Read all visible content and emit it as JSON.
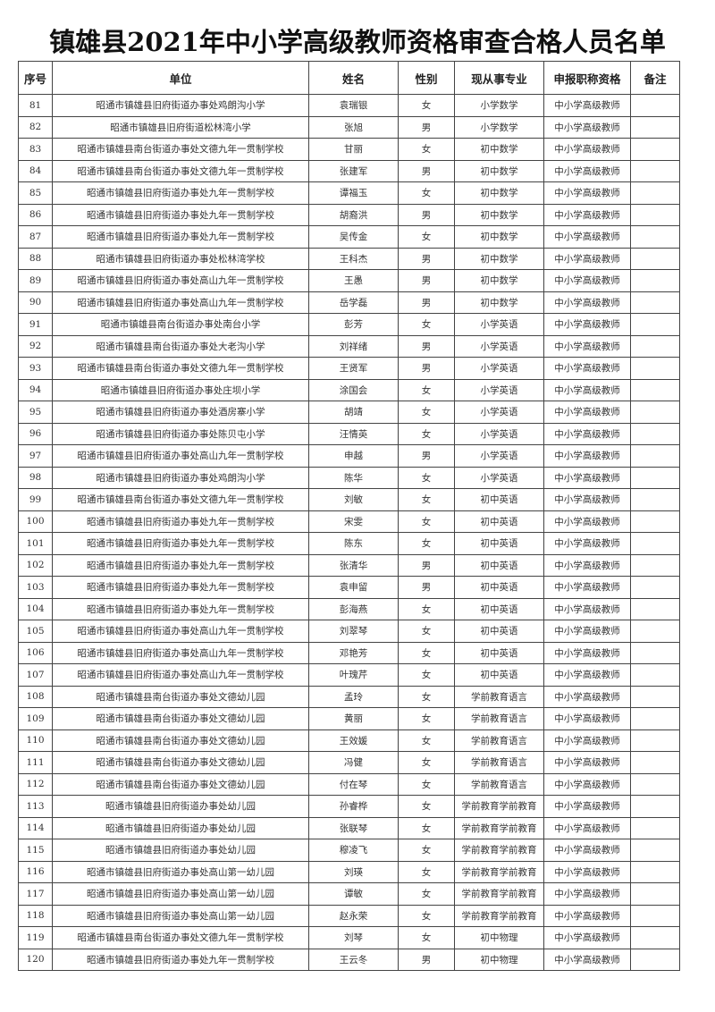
{
  "title": "镇雄县2021年中小学高级教师资格审查合格人员名单",
  "columns": [
    "序号",
    "单位",
    "姓名",
    "性别",
    "现从事专业",
    "申报职称资格",
    "备注"
  ],
  "rows": [
    [
      "81",
      "昭通市镇雄县旧府街道办事处鸡朗沟小学",
      "袁瑞银",
      "女",
      "小学数学",
      "中小学高级教师",
      ""
    ],
    [
      "82",
      "昭通市镇雄县旧府街道松林湾小学",
      "张旭",
      "男",
      "小学数学",
      "中小学高级教师",
      ""
    ],
    [
      "83",
      "昭通市镇雄县南台街道办事处文德九年一贯制学校",
      "甘丽",
      "女",
      "初中数学",
      "中小学高级教师",
      ""
    ],
    [
      "84",
      "昭通市镇雄县南台街道办事处文德九年一贯制学校",
      "张建军",
      "男",
      "初中数学",
      "中小学高级教师",
      ""
    ],
    [
      "85",
      "昭通市镇雄县旧府街道办事处九年一贯制学校",
      "谭福玉",
      "女",
      "初中数学",
      "中小学高级教师",
      ""
    ],
    [
      "86",
      "昭通市镇雄县旧府街道办事处九年一贯制学校",
      "胡裔洪",
      "男",
      "初中数学",
      "中小学高级教师",
      ""
    ],
    [
      "87",
      "昭通市镇雄县旧府街道办事处九年一贯制学校",
      "吴传金",
      "女",
      "初中数学",
      "中小学高级教师",
      ""
    ],
    [
      "88",
      "昭通市镇雄县旧府街道办事处松林湾学校",
      "王科杰",
      "男",
      "初中数学",
      "中小学高级教师",
      ""
    ],
    [
      "89",
      "昭通市镇雄县旧府街道办事处高山九年一贯制学校",
      "王愚",
      "男",
      "初中数学",
      "中小学高级教师",
      ""
    ],
    [
      "90",
      "昭通市镇雄县旧府街道办事处高山九年一贯制学校",
      "岳学磊",
      "男",
      "初中数学",
      "中小学高级教师",
      ""
    ],
    [
      "91",
      "昭通市镇雄县南台街道办事处南台小学",
      "彭芳",
      "女",
      "小学英语",
      "中小学高级教师",
      ""
    ],
    [
      "92",
      "昭通市镇雄县南台街道办事处大老沟小学",
      "刘祥绪",
      "男",
      "小学英语",
      "中小学高级教师",
      ""
    ],
    [
      "93",
      "昭通市镇雄县南台街道办事处文德九年一贯制学校",
      "王贤军",
      "男",
      "小学英语",
      "中小学高级教师",
      ""
    ],
    [
      "94",
      "昭通市镇雄县旧府街道办事处庄坝小学",
      "涂国会",
      "女",
      "小学英语",
      "中小学高级教师",
      ""
    ],
    [
      "95",
      "昭通市镇雄县旧府街道办事处酒房寨小学",
      "胡靖",
      "女",
      "小学英语",
      "中小学高级教师",
      ""
    ],
    [
      "96",
      "昭通市镇雄县旧府街道办事处陈贝屯小学",
      "汪情英",
      "女",
      "小学英语",
      "中小学高级教师",
      ""
    ],
    [
      "97",
      "昭通市镇雄县旧府街道办事处高山九年一贯制学校",
      "申越",
      "男",
      "小学英语",
      "中小学高级教师",
      ""
    ],
    [
      "98",
      "昭通市镇雄县旧府街道办事处鸡朗沟小学",
      "陈华",
      "女",
      "小学英语",
      "中小学高级教师",
      ""
    ],
    [
      "99",
      "昭通市镇雄县南台街道办事处文德九年一贯制学校",
      "刘敏",
      "女",
      "初中英语",
      "中小学高级教师",
      ""
    ],
    [
      "100",
      "昭通市镇雄县旧府街道办事处九年一贯制学校",
      "宋雯",
      "女",
      "初中英语",
      "中小学高级教师",
      ""
    ],
    [
      "101",
      "昭通市镇雄县旧府街道办事处九年一贯制学校",
      "陈东",
      "女",
      "初中英语",
      "中小学高级教师",
      ""
    ],
    [
      "102",
      "昭通市镇雄县旧府街道办事处九年一贯制学校",
      "张清华",
      "男",
      "初中英语",
      "中小学高级教师",
      ""
    ],
    [
      "103",
      "昭通市镇雄县旧府街道办事处九年一贯制学校",
      "袁申留",
      "男",
      "初中英语",
      "中小学高级教师",
      ""
    ],
    [
      "104",
      "昭通市镇雄县旧府街道办事处九年一贯制学校",
      "彭海燕",
      "女",
      "初中英语",
      "中小学高级教师",
      ""
    ],
    [
      "105",
      "昭通市镇雄县旧府街道办事处高山九年一贯制学校",
      "刘翠琴",
      "女",
      "初中英语",
      "中小学高级教师",
      ""
    ],
    [
      "106",
      "昭通市镇雄县旧府街道办事处高山九年一贯制学校",
      "邓艳芳",
      "女",
      "初中英语",
      "中小学高级教师",
      ""
    ],
    [
      "107",
      "昭通市镇雄县旧府街道办事处高山九年一贯制学校",
      "叶瑰芹",
      "女",
      "初中英语",
      "中小学高级教师",
      ""
    ],
    [
      "108",
      "昭通市镇雄县南台街道办事处文德幼儿园",
      "孟玲",
      "女",
      "学前教育语言",
      "中小学高级教师",
      ""
    ],
    [
      "109",
      "昭通市镇雄县南台街道办事处文德幼儿园",
      "黄丽",
      "女",
      "学前教育语言",
      "中小学高级教师",
      ""
    ],
    [
      "110",
      "昭通市镇雄县南台街道办事处文德幼儿园",
      "王效媛",
      "女",
      "学前教育语言",
      "中小学高级教师",
      ""
    ],
    [
      "111",
      "昭通市镇雄县南台街道办事处文德幼儿园",
      "冯健",
      "女",
      "学前教育语言",
      "中小学高级教师",
      ""
    ],
    [
      "112",
      "昭通市镇雄县南台街道办事处文德幼儿园",
      "付在琴",
      "女",
      "学前教育语言",
      "中小学高级教师",
      ""
    ],
    [
      "113",
      "昭通市镇雄县旧府街道办事处幼儿园",
      "孙睿桦",
      "女",
      "学前教育学前教育",
      "中小学高级教师",
      ""
    ],
    [
      "114",
      "昭通市镇雄县旧府街道办事处幼儿园",
      "张联琴",
      "女",
      "学前教育学前教育",
      "中小学高级教师",
      ""
    ],
    [
      "115",
      "昭通市镇雄县旧府街道办事处幼儿园",
      "穆凌飞",
      "女",
      "学前教育学前教育",
      "中小学高级教师",
      ""
    ],
    [
      "116",
      "昭通市镇雄县旧府街道办事处高山第一幼儿园",
      "刘瑛",
      "女",
      "学前教育学前教育",
      "中小学高级教师",
      ""
    ],
    [
      "117",
      "昭通市镇雄县旧府街道办事处高山第一幼儿园",
      "谭敏",
      "女",
      "学前教育学前教育",
      "中小学高级教师",
      ""
    ],
    [
      "118",
      "昭通市镇雄县旧府街道办事处高山第一幼儿园",
      "赵永荣",
      "女",
      "学前教育学前教育",
      "中小学高级教师",
      ""
    ],
    [
      "119",
      "昭通市镇雄县南台街道办事处文德九年一贯制学校",
      "刘琴",
      "女",
      "初中物理",
      "中小学高级教师",
      ""
    ],
    [
      "120",
      "昭通市镇雄县旧府街道办事处九年一贯制学校",
      "王云冬",
      "男",
      "初中物理",
      "中小学高级教师",
      ""
    ]
  ]
}
